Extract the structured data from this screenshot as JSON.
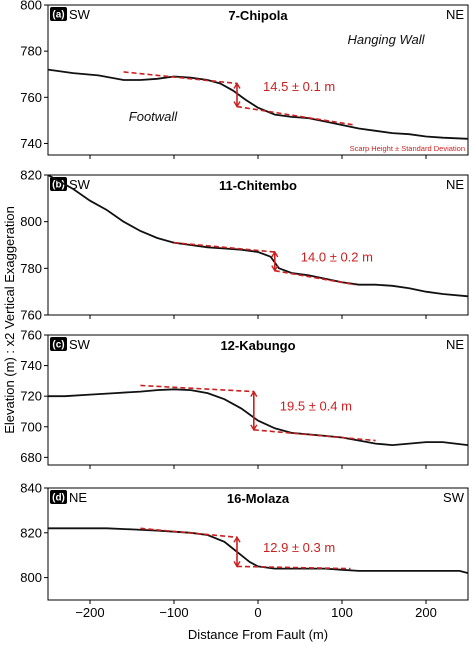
{
  "figure": {
    "ylabel": "Elevation (m) : x2 Vertical Exaggeration",
    "xlabel": "Distance From Fault (m)",
    "xlim": [
      -250,
      250
    ],
    "xticks": [
      -200,
      -100,
      0,
      100,
      200
    ]
  },
  "chart_data": [
    {
      "type": "line",
      "panel_label": "(a)",
      "title": "7-Chipola",
      "left_dir": "SW",
      "right_dir": "NE",
      "annotations": [
        "Hanging Wall",
        "Footwall"
      ],
      "note": "Scarp Height ± Standard Deviation",
      "scarp_label": "14.5 ± 0.1 m",
      "ylim": [
        735,
        800
      ],
      "yticks": [
        740,
        760,
        780,
        800
      ],
      "x": [
        -250,
        -220,
        -190,
        -160,
        -140,
        -120,
        -100,
        -80,
        -60,
        -45,
        -30,
        -15,
        0,
        20,
        40,
        60,
        80,
        100,
        120,
        140,
        160,
        180,
        200,
        220,
        250
      ],
      "y": [
        772,
        770.5,
        769.5,
        767.5,
        767.5,
        768,
        769,
        768.5,
        767.5,
        766,
        763,
        759,
        755.5,
        752.5,
        751.5,
        751,
        749.5,
        748,
        746.5,
        745.5,
        744.5,
        744,
        743,
        742.5,
        742
      ],
      "upper_fit": {
        "x": [
          -160,
          -25
        ],
        "y": [
          771,
          766
        ]
      },
      "lower_fit": {
        "x": [
          -25,
          115
        ],
        "y": [
          756,
          748
        ]
      },
      "scarp_x": -25
    },
    {
      "type": "line",
      "panel_label": "(b)",
      "title": "11-Chitembo",
      "left_dir": "SW",
      "right_dir": "NE",
      "scarp_label": "14.0 ± 0.2 m",
      "ylim": [
        760,
        820
      ],
      "yticks": [
        760,
        780,
        800,
        820
      ],
      "x": [
        -250,
        -240,
        -220,
        -200,
        -180,
        -160,
        -140,
        -120,
        -100,
        -80,
        -60,
        -40,
        -20,
        0,
        15,
        25,
        40,
        60,
        80,
        100,
        120,
        140,
        160,
        180,
        200,
        220,
        250
      ],
      "y": [
        820,
        818,
        814,
        809,
        805,
        800,
        796,
        793,
        791,
        790,
        789,
        788.5,
        788,
        787,
        785,
        780,
        778,
        777,
        775.5,
        774,
        773,
        773,
        772.5,
        771.5,
        770,
        769,
        768
      ],
      "upper_fit": {
        "x": [
          -100,
          20
        ],
        "y": [
          791,
          787
        ]
      },
      "lower_fit": {
        "x": [
          20,
          115
        ],
        "y": [
          779,
          773
        ]
      },
      "scarp_x": 20
    },
    {
      "type": "line",
      "panel_label": "(c)",
      "title": "12-Kabungo",
      "left_dir": "SW",
      "right_dir": "NE",
      "scarp_label": "19.5 ± 0.4 m",
      "ylim": [
        675,
        760
      ],
      "yticks": [
        680,
        700,
        720,
        740,
        760
      ],
      "x": [
        -250,
        -230,
        -200,
        -170,
        -140,
        -120,
        -100,
        -80,
        -60,
        -40,
        -20,
        0,
        20,
        40,
        60,
        80,
        100,
        120,
        140,
        160,
        180,
        200,
        220,
        250
      ],
      "y": [
        720,
        720,
        721,
        722,
        723,
        724,
        724.5,
        724,
        722,
        718,
        712,
        704,
        699,
        696,
        695,
        694,
        693,
        691,
        689,
        688,
        689,
        690,
        690,
        688
      ],
      "upper_fit": {
        "x": [
          -140,
          -5
        ],
        "y": [
          727,
          723
        ]
      },
      "lower_fit": {
        "x": [
          -5,
          140
        ],
        "y": [
          698,
          691
        ]
      },
      "scarp_x": -5
    },
    {
      "type": "line",
      "panel_label": "(d)",
      "title": "16-Molaza",
      "left_dir": "NE",
      "right_dir": "SW",
      "scarp_label": "12.9 ± 0.3 m",
      "ylim": [
        790,
        840
      ],
      "yticks": [
        800,
        820,
        840
      ],
      "x": [
        -250,
        -220,
        -180,
        -150,
        -120,
        -100,
        -80,
        -60,
        -40,
        -30,
        -20,
        -10,
        0,
        20,
        40,
        60,
        80,
        100,
        120,
        140,
        160,
        180,
        200,
        220,
        240,
        250
      ],
      "y": [
        822,
        822,
        822,
        821.5,
        821,
        820.5,
        820,
        819,
        816,
        813,
        810,
        807,
        805,
        804,
        804,
        804,
        804,
        803.5,
        803,
        803,
        803,
        803,
        803,
        803,
        803,
        802
      ],
      "upper_fit": {
        "x": [
          -140,
          -25
        ],
        "y": [
          822,
          818
        ]
      },
      "lower_fit": {
        "x": [
          -25,
          110
        ],
        "y": [
          805,
          804
        ]
      },
      "scarp_x": -25
    }
  ]
}
